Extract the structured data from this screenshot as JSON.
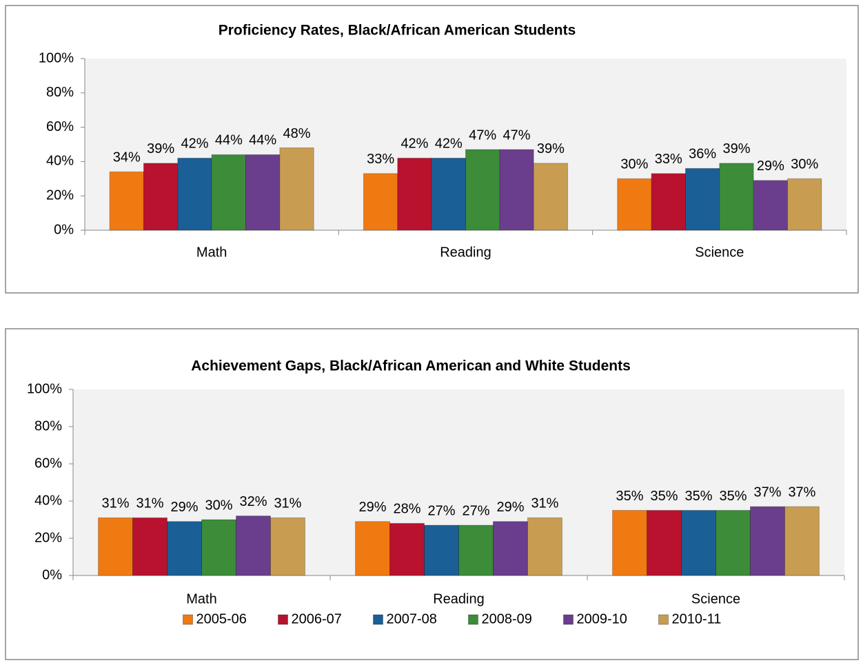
{
  "chart_data": [
    {
      "type": "bar",
      "title": "Proficiency Rates, Black/African American Students",
      "categories": [
        "Math",
        "Reading",
        "Science"
      ],
      "series": [
        {
          "color": "#f07a12",
          "values": [
            34,
            33,
            30
          ],
          "value_labels": [
            "34%",
            "33%",
            "30%"
          ]
        },
        {
          "color": "#b8122f",
          "values": [
            39,
            42,
            33
          ],
          "value_labels": [
            "39%",
            "42%",
            "33%"
          ]
        },
        {
          "color": "#1a5f95",
          "values": [
            42,
            42,
            36
          ],
          "value_labels": [
            "42%",
            "42%",
            "36%"
          ]
        },
        {
          "color": "#3c8c3a",
          "values": [
            44,
            47,
            39
          ],
          "value_labels": [
            "44%",
            "47%",
            "39%"
          ]
        },
        {
          "color": "#6a3e8c",
          "values": [
            44,
            47,
            29
          ],
          "value_labels": [
            "44%",
            "47%",
            "29%"
          ]
        },
        {
          "color": "#c89d52",
          "values": [
            48,
            39,
            30
          ],
          "value_labels": [
            "48%",
            "39%",
            "30%"
          ]
        }
      ],
      "ylim": [
        0,
        100
      ],
      "yticks": [
        {
          "value": 0,
          "label": "0%"
        },
        {
          "value": 20,
          "label": "20%"
        },
        {
          "value": 40,
          "label": "40%"
        },
        {
          "value": 60,
          "label": "60%"
        },
        {
          "value": 80,
          "label": "80%"
        },
        {
          "value": 100,
          "label": "100%"
        }
      ]
    },
    {
      "type": "bar",
      "title": "Achievement Gaps, Black/African American and White Students",
      "categories": [
        "Math",
        "Reading",
        "Science"
      ],
      "series": [
        {
          "name": "2005-06",
          "color": "#f07a12",
          "values": [
            31,
            29,
            35
          ],
          "value_labels": [
            "31%",
            "29%",
            "35%"
          ]
        },
        {
          "name": "2006-07",
          "color": "#b8122f",
          "values": [
            31,
            28,
            35
          ],
          "value_labels": [
            "31%",
            "28%",
            "35%"
          ]
        },
        {
          "name": "2007-08",
          "color": "#1a5f95",
          "values": [
            29,
            27,
            35
          ],
          "value_labels": [
            "29%",
            "27%",
            "35%"
          ]
        },
        {
          "name": "2008-09",
          "color": "#3c8c3a",
          "values": [
            30,
            27,
            35
          ],
          "value_labels": [
            "30%",
            "27%",
            "35%"
          ]
        },
        {
          "name": "2009-10",
          "color": "#6a3e8c",
          "values": [
            32,
            29,
            37
          ],
          "value_labels": [
            "32%",
            "29%",
            "37%"
          ]
        },
        {
          "name": "2010-11",
          "color": "#c89d52",
          "values": [
            31,
            31,
            37
          ],
          "value_labels": [
            "31%",
            "31%",
            "37%"
          ]
        }
      ],
      "ylim": [
        0,
        100
      ],
      "yticks": [
        {
          "value": 0,
          "label": "0%"
        },
        {
          "value": 20,
          "label": "20%"
        },
        {
          "value": 40,
          "label": "40%"
        },
        {
          "value": 60,
          "label": "60%"
        },
        {
          "value": 80,
          "label": "80%"
        },
        {
          "value": 100,
          "label": "100%"
        }
      ],
      "legend": "bottom"
    }
  ]
}
